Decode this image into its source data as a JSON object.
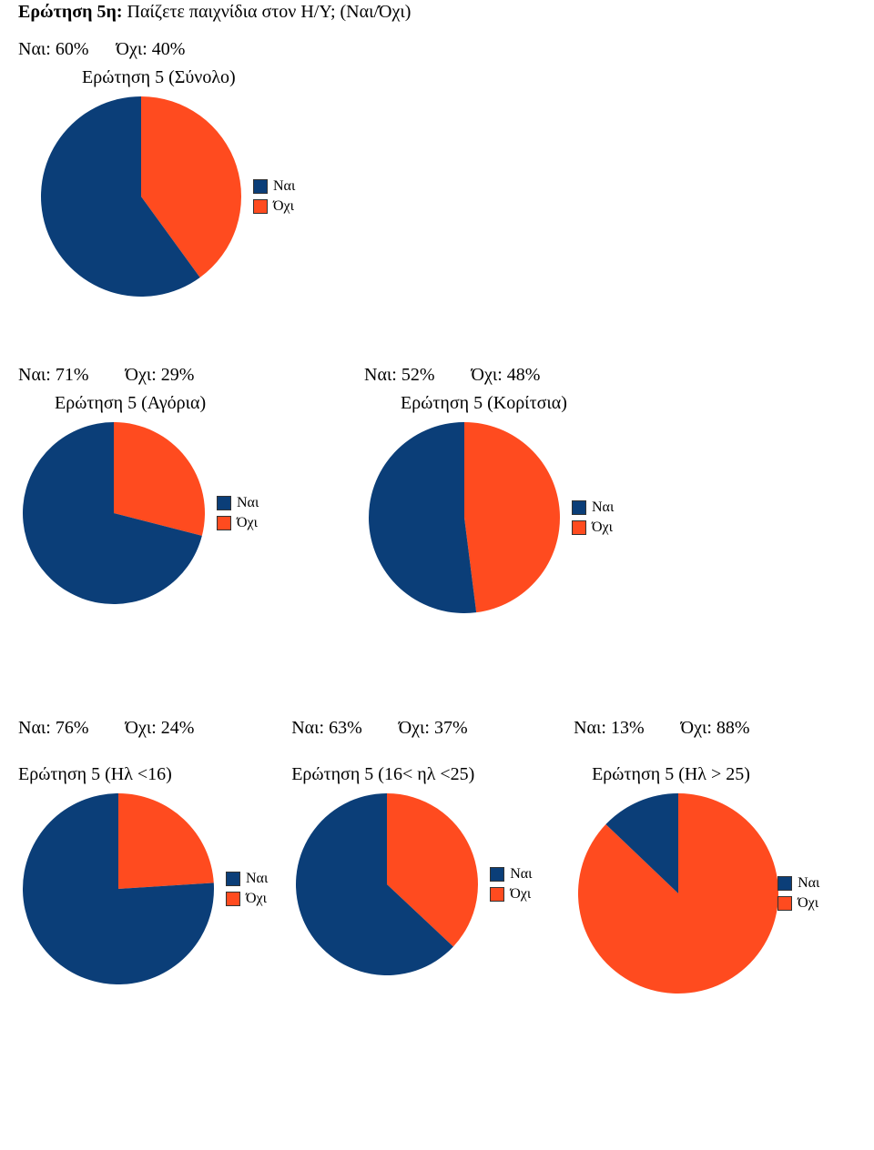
{
  "colors": {
    "yes": "#0b3e78",
    "no": "#ff4b1f"
  },
  "legend": {
    "yes": "Ναι",
    "no": "Όχι"
  },
  "question": {
    "prefix": "Ερώτηση 5η:",
    "text": " Παίζετε παιχνίδια στον Η/Υ; (Ναι/Όχι)"
  },
  "charts": {
    "total": {
      "title": "Ερώτηση 5 (Σύνολο)",
      "yes_label": "Ναι: 60%",
      "no_label": "Όχι: 40%",
      "yes": 60,
      "no": 40
    },
    "boys": {
      "title": "Ερώτηση 5 (Αγόρια)",
      "yes_label": "Ναι: 71%",
      "no_label": "Όχι: 29%",
      "yes": 71,
      "no": 29
    },
    "girls": {
      "title": "Ερώτηση 5 (Κορίτσια)",
      "yes_label": "Ναι: 52%",
      "no_label": "Όχι: 48%",
      "yes": 52,
      "no": 48
    },
    "lt16": {
      "title": "Ερώτηση 5 (Ηλ <16)",
      "yes_label": "Ναι: 76%",
      "no_label": "Όχι: 24%",
      "yes": 76,
      "no": 24
    },
    "b16_25": {
      "title": "Ερώτηση 5 (16< ηλ <25)",
      "yes_label": "Ναι: 63%",
      "no_label": "Όχι: 37%",
      "yes": 63,
      "no": 37
    },
    "gt25": {
      "title": "Ερώτηση 5 (Ηλ > 25)",
      "yes_label": "Ναι: 13%",
      "no_label": "Όχι: 88%",
      "yes": 13,
      "no": 88
    }
  },
  "layout": {
    "pie_radius_main": 110,
    "pie_radius_sub": 100,
    "font": "Times New Roman"
  }
}
